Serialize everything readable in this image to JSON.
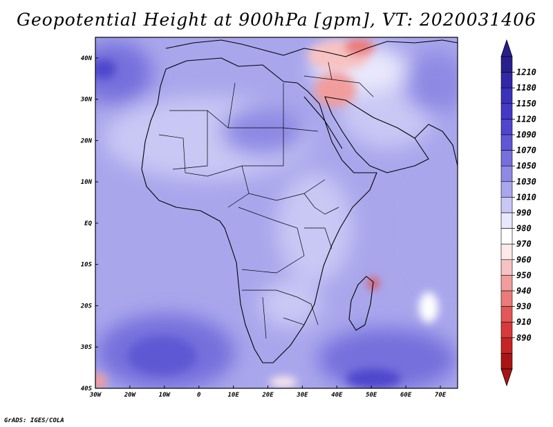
{
  "title": "Geopotential Height at 900hPa [gpm], VT: 2020031406",
  "credit": "GrADS: IGES/COLA",
  "map": {
    "lat_labels": [
      "40N",
      "30N",
      "20N",
      "10N",
      "EQ",
      "10S",
      "20S",
      "30S",
      "40S"
    ],
    "lon_labels": [
      "30W",
      "20W",
      "10W",
      "0",
      "10E",
      "20E",
      "30E",
      "40E",
      "50E",
      "60E",
      "70E"
    ],
    "lat_range": [
      -40,
      45
    ],
    "lon_range": [
      -30,
      75
    ]
  },
  "colorbar": {
    "labels": [
      "1210",
      "1180",
      "1150",
      "1120",
      "1090",
      "1070",
      "1050",
      "1030",
      "1010",
      "990",
      "980",
      "970",
      "960",
      "950",
      "940",
      "930",
      "910",
      "890"
    ],
    "colors": [
      "#2a1e8c",
      "#3227a6",
      "#3a32b8",
      "#4339c6",
      "#4f46cc",
      "#5f58d4",
      "#7570dc",
      "#8e8ae4",
      "#a9a6ec",
      "#c9c7f4",
      "#e8e7fb",
      "#ffffff",
      "#fde9e9",
      "#f7c2c2",
      "#f19d9d",
      "#eb7a7a",
      "#e25757",
      "#d63a3a",
      "#c42424",
      "#a81515"
    ]
  }
}
